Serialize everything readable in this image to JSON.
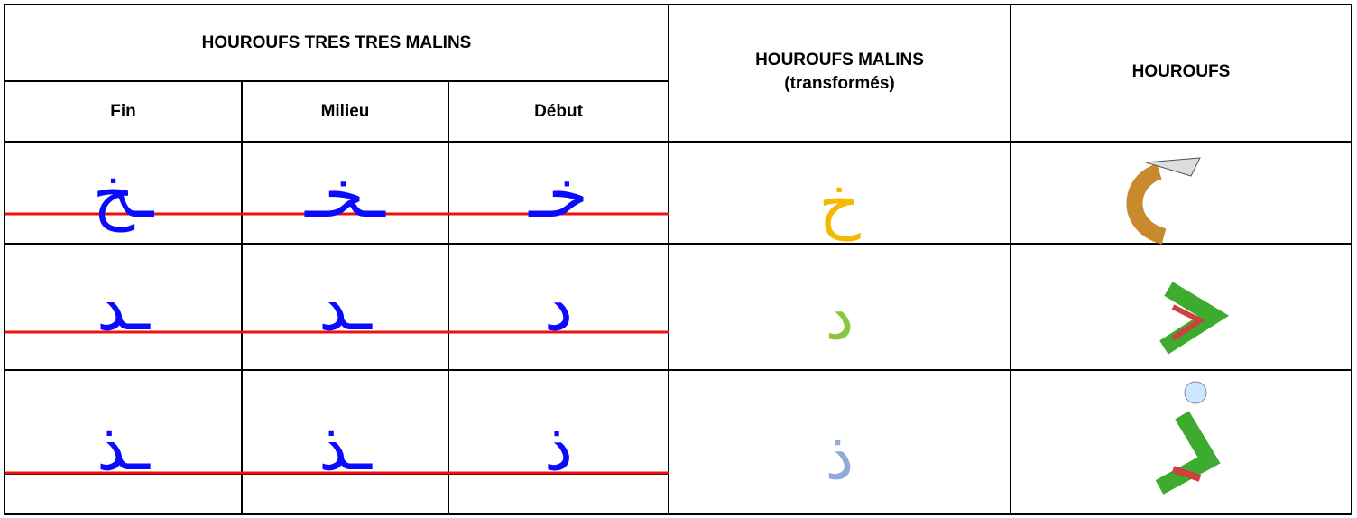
{
  "header": {
    "title": "HOUROUFS TRES TRES MALINS",
    "sub": [
      "Fin",
      "Milieu",
      "Début"
    ],
    "malins": [
      "HOUROUFS MALINS",
      "(transformés)"
    ],
    "hourouf": "HOUROUFS"
  },
  "rows": [
    {
      "forms": [
        "ـخ",
        "ـخـ",
        "خـ"
      ],
      "transformed": "خ"
    },
    {
      "forms": [
        "ـد",
        "ـد",
        "د"
      ],
      "transformed": "د"
    },
    {
      "forms": [
        "ـذ",
        "ـذ",
        "ذ"
      ],
      "transformed": "ذ"
    }
  ]
}
